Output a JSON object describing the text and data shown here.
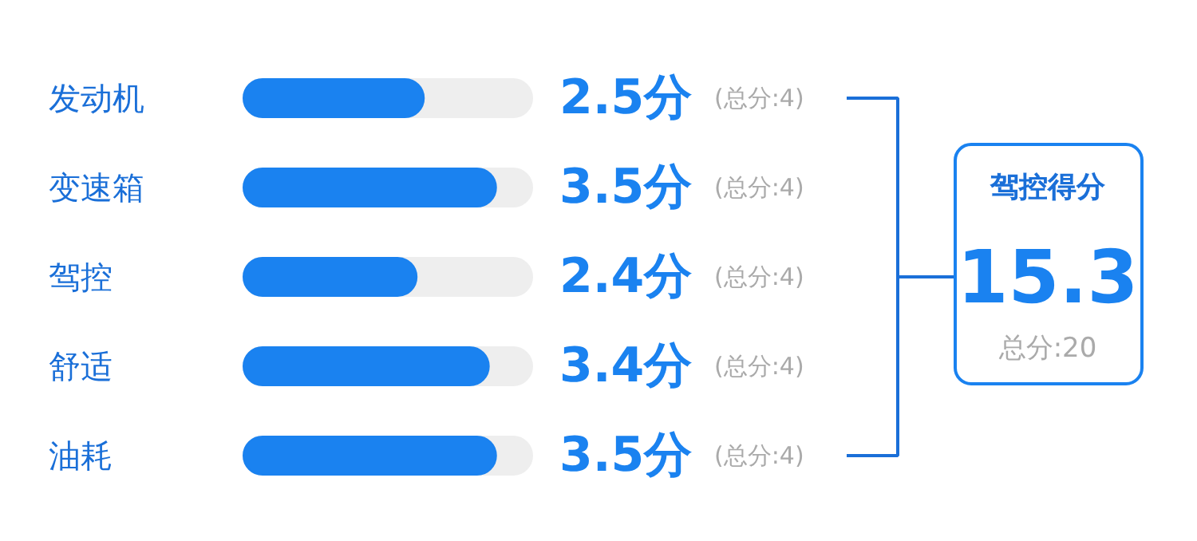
{
  "chart_data": {
    "type": "bar",
    "orientation": "horizontal",
    "categories": [
      "发动机",
      "变速箱",
      "驾控",
      "舒适",
      "油耗"
    ],
    "values": [
      2.5,
      3.5,
      2.4,
      3.4,
      3.5
    ],
    "color": "#1a82f0",
    "xlim": [
      0,
      4
    ],
    "tick_labels": false,
    "value_labels": [
      "2.5分",
      "3.5分",
      "2.4分",
      "3.4分",
      "3.5分"
    ],
    "annotations": [
      "(总分:4)",
      "(总分:4)",
      "(总分:4)",
      "(总分:4)",
      "(总分:4)",
      "驾控得分",
      "15.3",
      "总分:20"
    ]
  }
}
